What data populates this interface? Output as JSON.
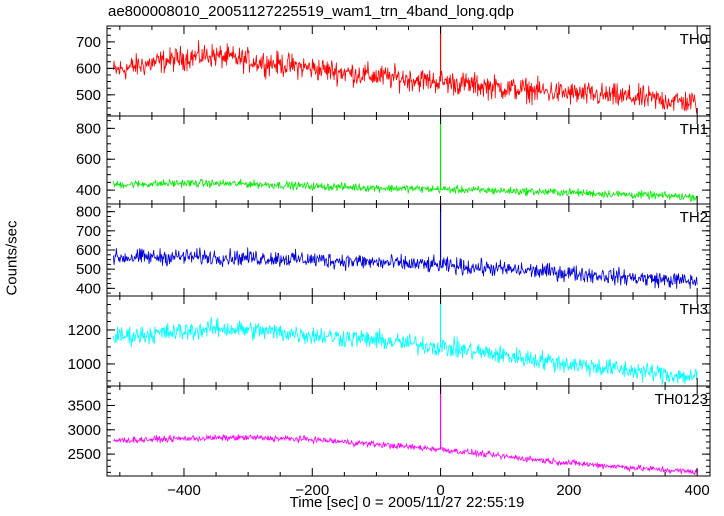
{
  "title": "ae800008010_20051127225519_wam1_trn_4band_long.qdp",
  "chart_data": {
    "type": "line",
    "title": "ae800008010_20051127225519_wam1_trn_4band_long.qdp",
    "xlabel": "Time [sec] 0 = 2005/11/27 22:55:19",
    "ylabel": "Counts/sec",
    "xlim": [
      -520,
      420
    ],
    "x_ticks": [
      -400,
      -200,
      0,
      200,
      400
    ],
    "x_tick_labels": [
      "−400",
      "−200",
      "0",
      "200",
      "400"
    ],
    "panels": [
      {
        "name": "TH0",
        "color": "#ff0000",
        "ylim": [
          420,
          760
        ],
        "y_ticks": [
          500,
          600,
          700
        ],
        "y_tick_labels": [
          "500",
          "600",
          "700"
        ],
        "trend_x": [
          -510,
          -460,
          -400,
          -360,
          -300,
          -200,
          -100,
          0,
          100,
          200,
          300,
          400
        ],
        "trend_y": [
          590,
          615,
          640,
          650,
          630,
          600,
          570,
          550,
          525,
          505,
          490,
          470
        ],
        "noise": 32,
        "spike_x": 0,
        "spike_y": 760
      },
      {
        "name": "TH1",
        "color": "#00ee00",
        "ylim": [
          310,
          880
        ],
        "y_ticks": [
          400,
          600,
          800
        ],
        "y_tick_labels": [
          "400",
          "600",
          "800"
        ],
        "trend_x": [
          -510,
          -400,
          -300,
          -200,
          -100,
          0,
          100,
          200,
          300,
          400
        ],
        "trend_y": [
          435,
          445,
          440,
          425,
          415,
          405,
          395,
          385,
          370,
          355
        ],
        "noise": 18,
        "spike_x": 0,
        "spike_y": 880
      },
      {
        "name": "TH2",
        "color": "#0000dd",
        "ylim": [
          360,
          840
        ],
        "y_ticks": [
          400,
          500,
          600,
          700,
          800
        ],
        "y_tick_labels": [
          "400",
          "500",
          "600",
          "700",
          "800"
        ],
        "trend_x": [
          -510,
          -400,
          -300,
          -200,
          -100,
          0,
          100,
          200,
          300,
          400
        ],
        "trend_y": [
          560,
          565,
          560,
          550,
          535,
          520,
          500,
          480,
          455,
          435
        ],
        "noise": 30,
        "spike_x": 0,
        "spike_y": 840
      },
      {
        "name": "TH3",
        "color": "#00ffff",
        "ylim": [
          870,
          1400
        ],
        "y_ticks": [
          1000,
          1200
        ],
        "y_tick_labels": [
          "1000",
          "1200"
        ],
        "trend_x": [
          -510,
          -400,
          -350,
          -300,
          -200,
          -100,
          0,
          100,
          200,
          300,
          400
        ],
        "trend_y": [
          1160,
          1190,
          1210,
          1200,
          1170,
          1140,
          1100,
          1050,
          1000,
          960,
          920
        ],
        "noise": 40,
        "spike_x": 0,
        "spike_y": 1400
      },
      {
        "name": "TH0123",
        "color": "#ff00ff",
        "ylim": [
          2050,
          3900
        ],
        "y_ticks": [
          2500,
          3000,
          3500
        ],
        "y_tick_labels": [
          "2500",
          "3000",
          "3500"
        ],
        "trend_x": [
          -510,
          -400,
          -300,
          -200,
          -100,
          0,
          100,
          200,
          300,
          400
        ],
        "trend_y": [
          2780,
          2820,
          2840,
          2800,
          2700,
          2600,
          2450,
          2320,
          2220,
          2130
        ],
        "noise": 45,
        "spike_x": 0,
        "spike_y": 3900
      }
    ]
  }
}
